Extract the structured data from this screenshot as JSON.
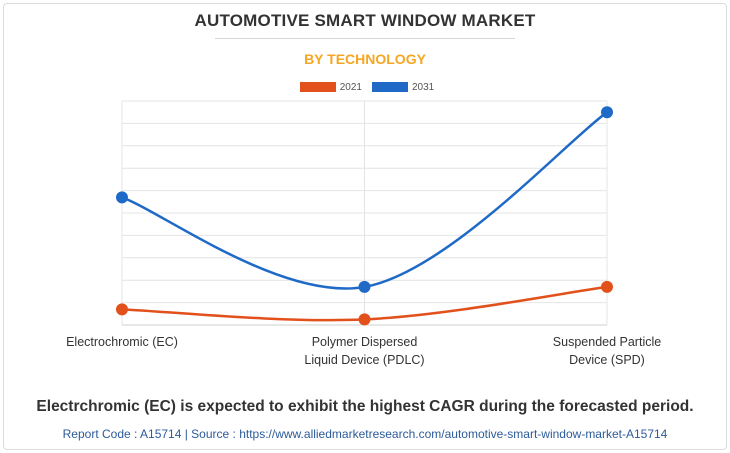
{
  "title": "AUTOMOTIVE SMART WINDOW MARKET",
  "subtitle": "BY TECHNOLOGY",
  "colors": {
    "subtitle": "#f5a623",
    "series_2021": "#e2501c",
    "series_2031": "#1f6ac7",
    "grid": "#e4e4e4"
  },
  "chart_data": {
    "type": "line",
    "categories": [
      "Electrochromic (EC)",
      "Polymer Dispersed\nLiquid Device (PDLC)",
      "Suspended Particle\nDevice (SPD)"
    ],
    "series": [
      {
        "name": "2021",
        "values": [
          0.7,
          0.25,
          1.7
        ]
      },
      {
        "name": "2031",
        "values": [
          5.7,
          1.7,
          9.5
        ]
      }
    ],
    "ylim": [
      0,
      10
    ],
    "y_tick_labels_shown": false,
    "xlabel": "",
    "ylabel": "",
    "grid": true,
    "legend_position": "top-center",
    "smooth": true
  },
  "footnote": "Electrchromic (EC) is expected to exhibit the highest CAGR during the forecasted period.",
  "source": "Report Code : A15714  |  Source : https://www.alliedmarketresearch.com/automotive-smart-window-market-A15714"
}
